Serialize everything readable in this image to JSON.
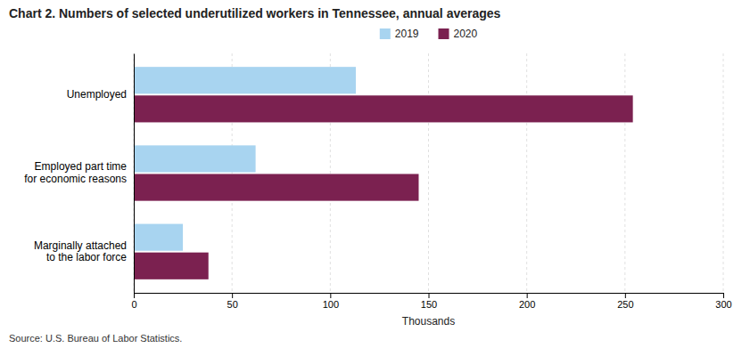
{
  "chart_data": {
    "type": "bar",
    "orientation": "horizontal",
    "title": "Chart 2. Numbers of selected underutilized workers in Tennessee, annual averages",
    "categories": [
      "Unemployed",
      "Employed part time\nfor economic reasons",
      "Marginally attached\nto the labor force"
    ],
    "series": [
      {
        "name": "2019",
        "color": "#a8d4f0",
        "values": [
          113,
          62,
          25
        ]
      },
      {
        "name": "2020",
        "color": "#7b2150",
        "values": [
          254,
          145,
          38
        ]
      }
    ],
    "xlabel": "Thousands",
    "xlim": [
      0,
      300
    ],
    "xticks": [
      0,
      50,
      100,
      150,
      200,
      250,
      300
    ],
    "grid": true,
    "legend": "top",
    "source": "Source: U.S. Bureau of Labor Statistics."
  }
}
